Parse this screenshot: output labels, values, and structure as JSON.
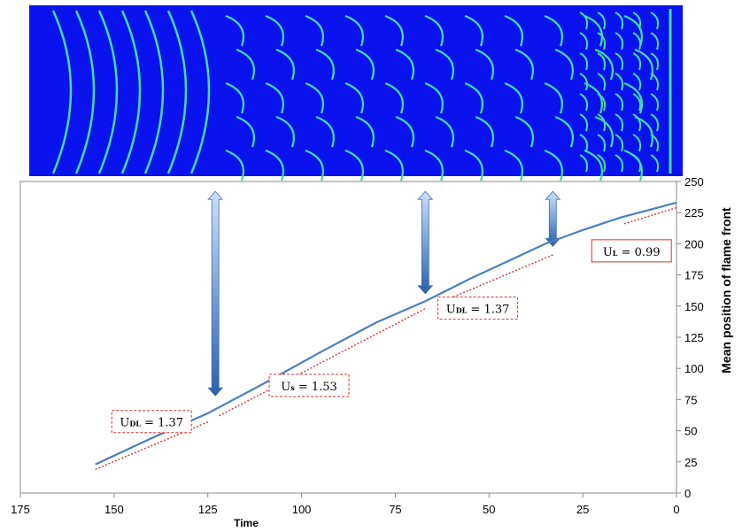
{
  "colors": {
    "sim_background": "#0a12ee",
    "flame_front": "#3be0a0",
    "curve": "#4b7fbf",
    "fit": "#e03030",
    "arrow": "#4a7cc4"
  },
  "chart_data": {
    "type": "line",
    "xlabel": "Time",
    "ylabel": "Mean position of flame front",
    "xlim": [
      175,
      0
    ],
    "ylim": [
      0,
      250
    ],
    "x_ticks": [
      "175",
      "150",
      "125",
      "100",
      "75",
      "50",
      "25",
      "0"
    ],
    "y_ticks": [
      "0",
      "25",
      "50",
      "75",
      "100",
      "125",
      "150",
      "175",
      "200",
      "225",
      "250"
    ],
    "grid": false,
    "x_reversed": true,
    "y_axis_side": "right",
    "series": [
      {
        "x": [
          155,
          140,
          125,
          110,
          95,
          80,
          67,
          55,
          45,
          35,
          25,
          15,
          5,
          0
        ],
        "y": [
          23,
          44,
          64,
          88,
          113,
          137,
          154,
          172,
          186,
          200,
          211,
          221,
          229,
          233
        ]
      }
    ],
    "fits": [
      {
        "label_main": "U",
        "label_sub": "DL",
        "label_value": " = 1.37",
        "x": [
          155,
          125
        ],
        "y": [
          19,
          57
        ],
        "label_x": 140,
        "label_y": 57
      },
      {
        "label_main": "U",
        "label_sub": "s",
        "label_value": " = 1.53",
        "x": [
          122,
          67
        ],
        "y": [
          62,
          148
        ],
        "label_x": 98,
        "label_y": 86
      },
      {
        "label_main": "U",
        "label_sub": "DL",
        "label_value": " = 1.37",
        "x": [
          63,
          33
        ],
        "y": [
          153,
          191
        ],
        "label_x": 53,
        "label_y": 148
      },
      {
        "label_main": "U",
        "label_sub": "L",
        "label_value": " = 0.99",
        "x": [
          14,
          0
        ],
        "y": [
          216,
          229
        ],
        "label_x": 12,
        "label_y": 194
      }
    ],
    "arrows": [
      {
        "x": 123,
        "y_top": 242,
        "y_bottom": 78
      },
      {
        "x": 67,
        "y_top": 242,
        "y_bottom": 160
      },
      {
        "x": 33,
        "y_top": 242,
        "y_bottom": 198
      }
    ]
  }
}
